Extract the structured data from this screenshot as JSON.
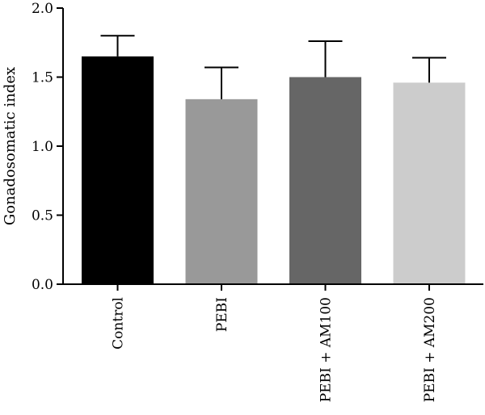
{
  "chart_data": {
    "type": "bar",
    "title": "",
    "xlabel": "",
    "ylabel": "Gonadosomatic index",
    "ylim": [
      0,
      2.0
    ],
    "yticks": [
      0.0,
      0.5,
      1.0,
      1.5,
      2.0
    ],
    "ytick_labels": [
      "0.0",
      "0.5",
      "1.0",
      "1.5",
      "2.0"
    ],
    "categories": [
      "Control",
      "PEBI",
      "PEBI + AM100",
      "PEBI + AM200"
    ],
    "values": [
      1.65,
      1.34,
      1.5,
      1.46
    ],
    "errors": [
      0.15,
      0.23,
      0.26,
      0.18
    ],
    "colors": [
      "#000000",
      "#999999",
      "#666666",
      "#cccccc"
    ],
    "grid": false,
    "legend": "none"
  }
}
